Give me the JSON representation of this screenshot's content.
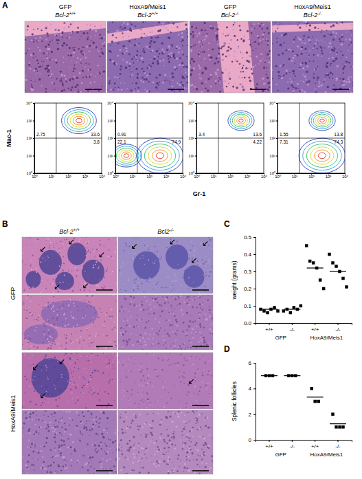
{
  "panel_labels": [
    "A",
    "B",
    "C",
    "D"
  ],
  "panel_a": {
    "columns": [
      {
        "vector": "GFP",
        "genotype": {
          "text": "Bcl-2",
          "sup": "+/+"
        }
      },
      {
        "vector": "HoxA9/Meis1",
        "genotype": {
          "text": "Bcl-2",
          "sup": "+/+"
        }
      },
      {
        "vector": "GFP",
        "genotype": {
          "text": "Bcl-2",
          "sup": "-/-"
        }
      },
      {
        "vector": "HoxA9/Meis1",
        "genotype": {
          "text": "Bcl-2",
          "sup": "-/-"
        }
      }
    ],
    "flow_x_label": "Gr-1",
    "flow_y_label": "Mac-1"
  },
  "panel_b": {
    "columns": [
      {
        "text": "Bcl-2",
        "sup": "+/+"
      },
      {
        "text": "Bcl2",
        "sup": "-/-"
      }
    ],
    "rows": [
      "GFP",
      "HoxA9/Meis1"
    ]
  },
  "chart_data": [
    {
      "type": "contour",
      "log": true,
      "xlim": [
        1,
        10000
      ],
      "ylim": [
        1,
        10000
      ],
      "xticks": [
        {
          "value": 1,
          "label": "10⁰"
        },
        {
          "value": 10,
          "label": "10¹"
        },
        {
          "value": 100,
          "label": "10²"
        },
        {
          "value": 1000,
          "label": "10³"
        },
        {
          "value": 10000,
          "label": "10⁴"
        }
      ],
      "yticks": [
        {
          "value": 1,
          "label": "10⁰"
        },
        {
          "value": 10,
          "label": "10¹"
        },
        {
          "value": 100,
          "label": "10²"
        },
        {
          "value": 1000,
          "label": "10³"
        },
        {
          "value": 10000,
          "label": "10⁴"
        }
      ],
      "x_gate": 20,
      "y_gate": 100,
      "quadrants": [
        2.75,
        33.6,
        null,
        3.8
      ]
    },
    {
      "type": "contour",
      "log": true,
      "xlim": [
        1,
        10000
      ],
      "ylim": [
        1,
        10000
      ],
      "xticks": [
        {
          "value": 1,
          "label": "10⁰"
        },
        {
          "value": 10,
          "label": "10¹"
        },
        {
          "value": 100,
          "label": "10²"
        },
        {
          "value": 1000,
          "label": "10³"
        },
        {
          "value": 10000,
          "label": "10⁴"
        }
      ],
      "yticks": [
        {
          "value": 1,
          "label": "10⁰"
        },
        {
          "value": 10,
          "label": "10¹"
        },
        {
          "value": 100,
          "label": "10²"
        },
        {
          "value": 1000,
          "label": "10³"
        },
        {
          "value": 10000,
          "label": "10⁴"
        }
      ],
      "x_gate": 20,
      "y_gate": 100,
      "quadrants": [
        0.91,
        null,
        22.1,
        74.9
      ]
    },
    {
      "type": "contour",
      "log": true,
      "xlim": [
        1,
        10000
      ],
      "ylim": [
        1,
        10000
      ],
      "xticks": [
        {
          "value": 1,
          "label": "10⁰"
        },
        {
          "value": 10,
          "label": "10¹"
        },
        {
          "value": 100,
          "label": "10²"
        },
        {
          "value": 1000,
          "label": "10³"
        },
        {
          "value": 10000,
          "label": "10⁴"
        }
      ],
      "yticks": [
        {
          "value": 1,
          "label": "10⁰"
        },
        {
          "value": 10,
          "label": "10¹"
        },
        {
          "value": 100,
          "label": "10²"
        },
        {
          "value": 1000,
          "label": "10³"
        },
        {
          "value": 10000,
          "label": "10⁴"
        }
      ],
      "x_gate": 20,
      "y_gate": 100,
      "quadrants": [
        3.4,
        13.6,
        null,
        4.22
      ]
    },
    {
      "type": "contour",
      "log": true,
      "xlim": [
        1,
        10000
      ],
      "ylim": [
        1,
        10000
      ],
      "xticks": [
        {
          "value": 1,
          "label": "10⁰"
        },
        {
          "value": 10,
          "label": "10¹"
        },
        {
          "value": 100,
          "label": "10²"
        },
        {
          "value": 1000,
          "label": "10³"
        },
        {
          "value": 10000,
          "label": "10⁴"
        }
      ],
      "yticks": [
        {
          "value": 1,
          "label": "10⁰"
        },
        {
          "value": 10,
          "label": "10¹"
        },
        {
          "value": 100,
          "label": "10²"
        },
        {
          "value": 1000,
          "label": "10³"
        },
        {
          "value": 10000,
          "label": "10⁴"
        }
      ],
      "x_gate": 20,
      "y_gate": 100,
      "quadrants": [
        1.55,
        13.8,
        7.31,
        74.3
      ]
    },
    {
      "type": "scatter",
      "ylabel": "weight (grams)",
      "categories": [
        "+/+",
        "-/-",
        "+/+",
        "-/-"
      ],
      "groups": [
        "GFP",
        "HoxA9/Meis1"
      ],
      "values": [
        [
          0.08,
          0.07,
          0.06,
          0.08,
          0.09,
          0.07
        ],
        [
          0.07,
          0.08,
          0.06,
          0.09,
          0.08,
          0.1
        ],
        [
          0.45,
          0.36,
          0.35,
          0.32,
          0.25,
          0.2
        ],
        [
          0.4,
          0.35,
          0.33,
          0.3,
          0.26,
          0.21
        ]
      ],
      "means": [
        0.08,
        0.08,
        0.32,
        0.3
      ],
      "ylim": [
        0,
        0.5
      ],
      "yticks": [
        {
          "value": 0,
          "label": "0.0"
        },
        0.1,
        0.2,
        0.3,
        0.4,
        0.5
      ],
      "marker": "square",
      "color": "#000000"
    },
    {
      "type": "scatter",
      "ylabel": "Splenic follicles",
      "categories": [
        "+/+",
        "-/-",
        "+/+",
        "-/-"
      ],
      "groups": [
        "GFP",
        "HoxA9/Meis1"
      ],
      "values": [
        [
          5,
          5,
          5
        ],
        [
          5,
          5,
          5
        ],
        [
          4,
          3,
          3
        ],
        [
          2,
          1,
          1,
          1
        ]
      ],
      "means": [
        5,
        5,
        3.33,
        1.25
      ],
      "ylim": [
        0,
        6
      ],
      "yticks": [
        0,
        2,
        4,
        6
      ],
      "marker": "square",
      "color": "#000000"
    }
  ]
}
